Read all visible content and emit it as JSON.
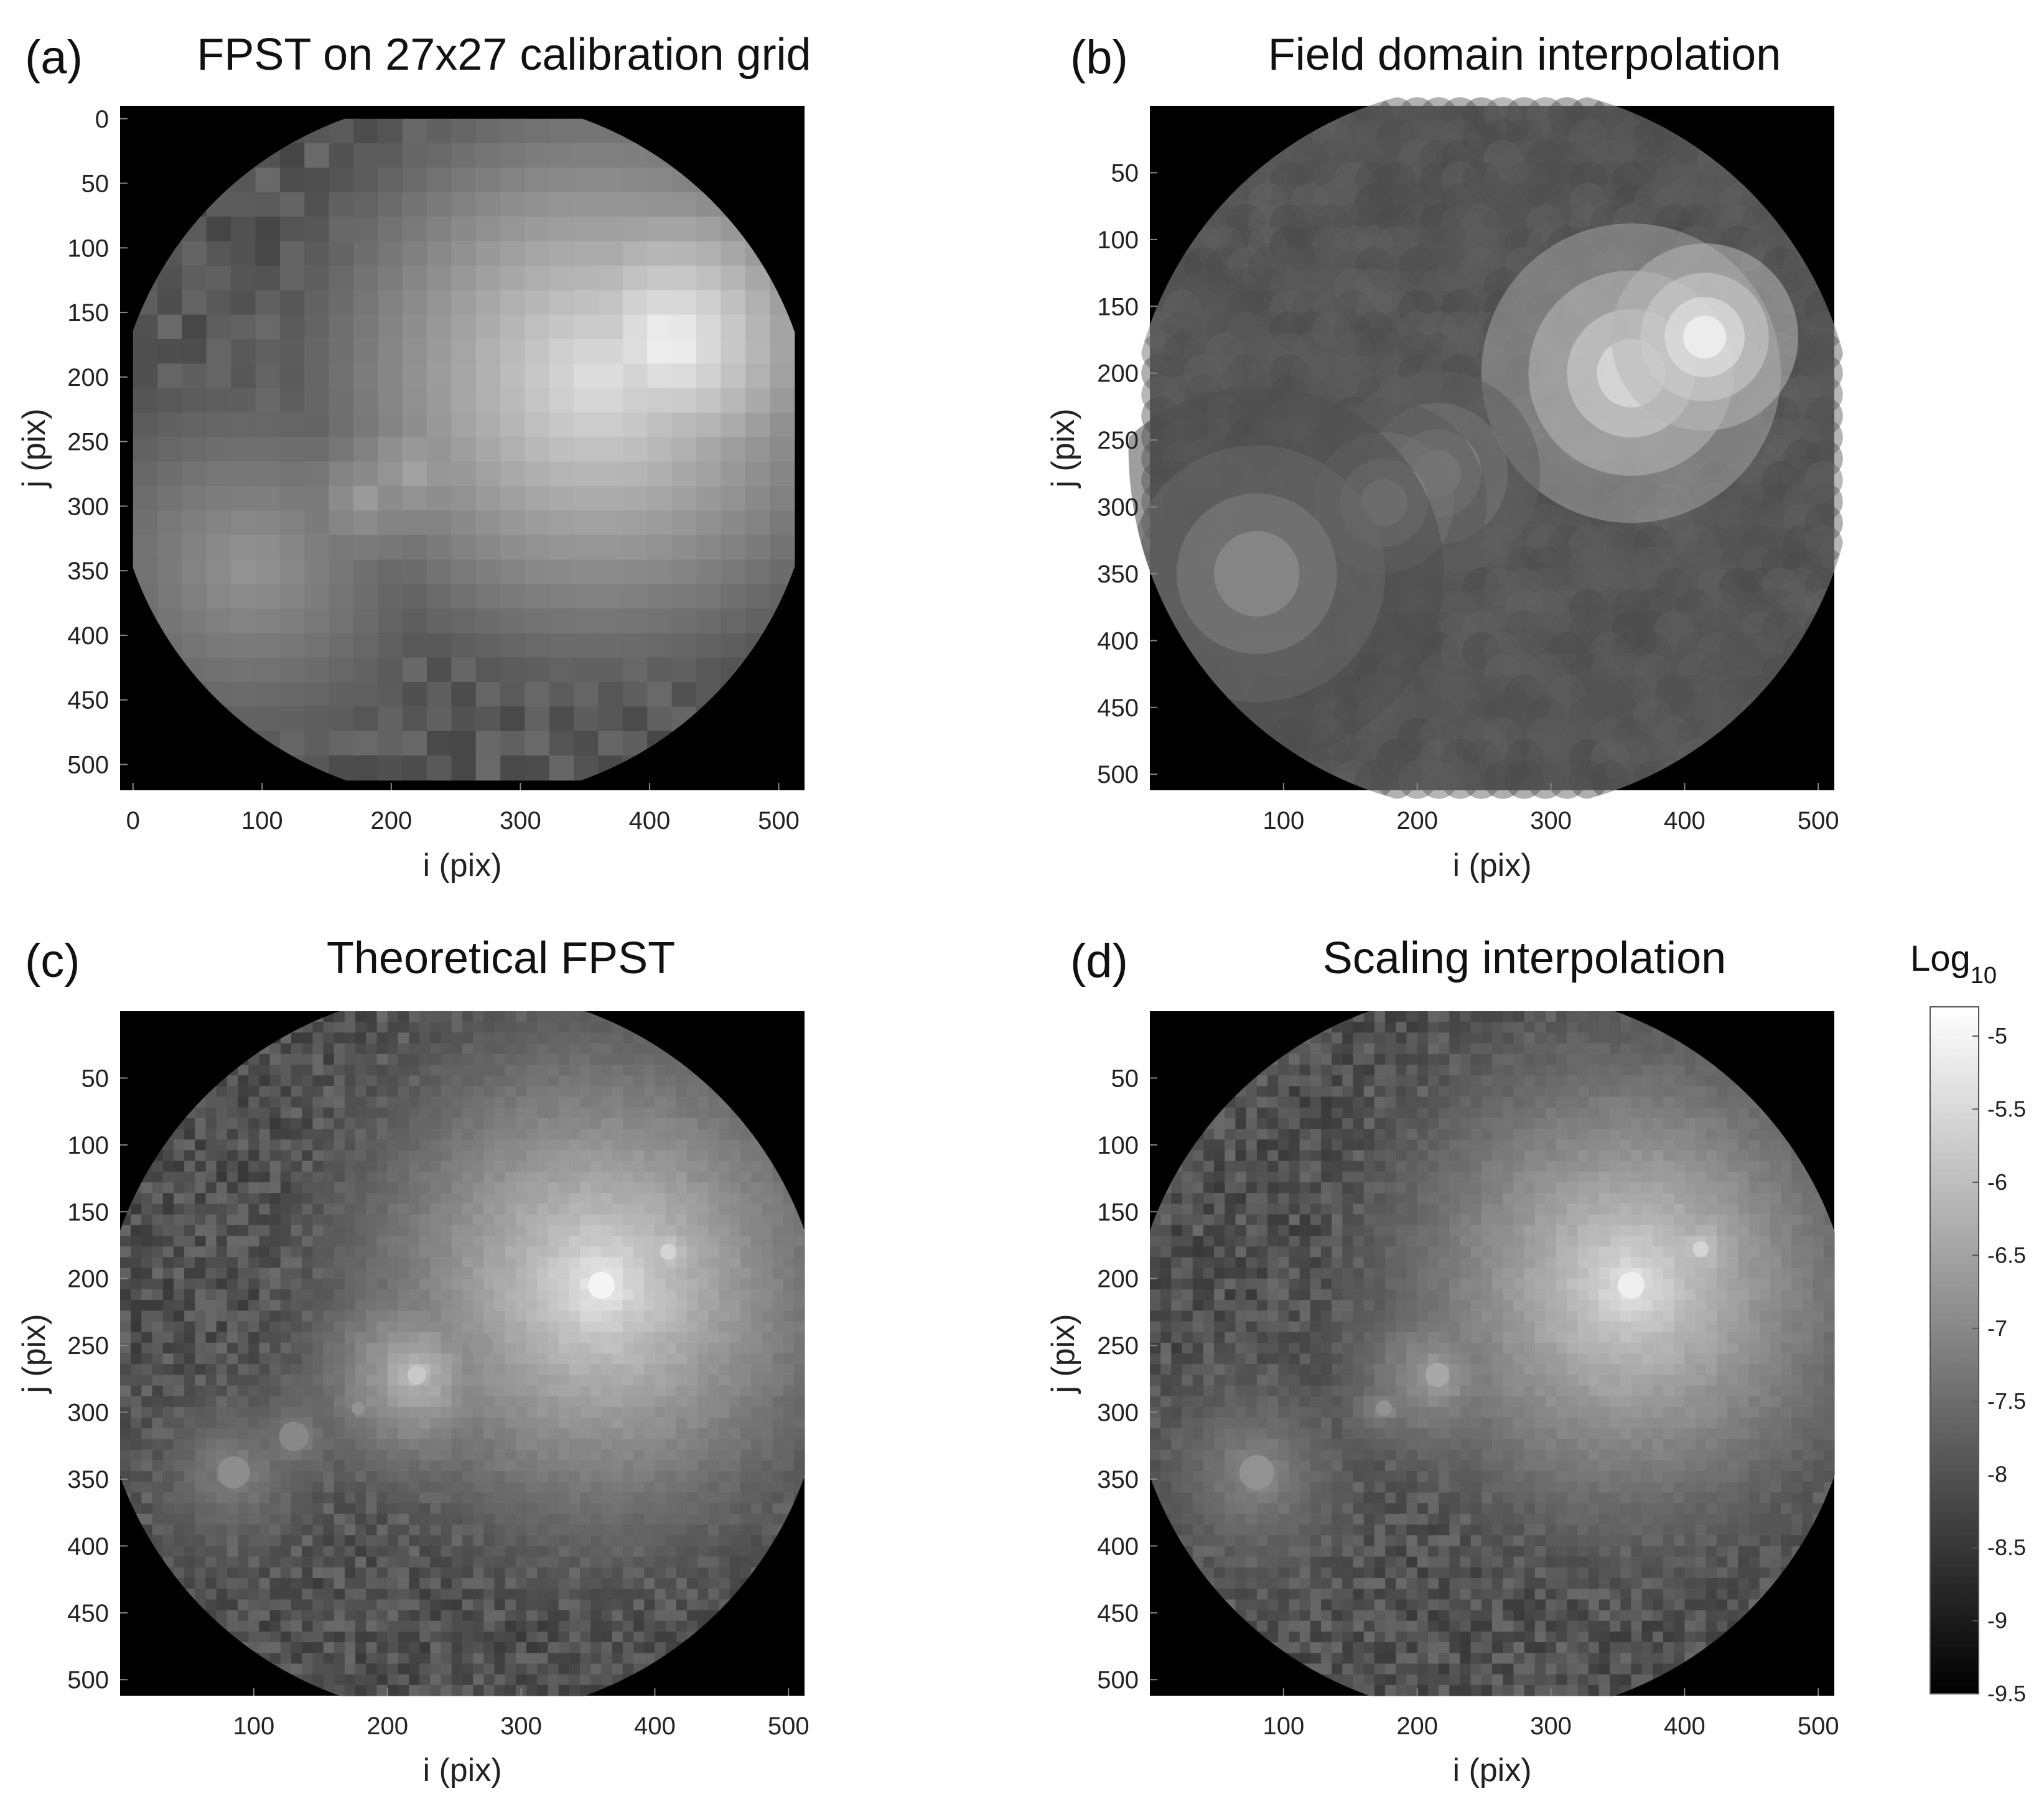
{
  "figure": {
    "colorbar": {
      "title": "Log",
      "subscript": "10",
      "range": [
        -9.5,
        -4.8
      ],
      "ticks": [
        -5,
        -5.5,
        -6,
        -6.5,
        -7,
        -7.5,
        -8,
        -8.5,
        -9,
        -9.5
      ],
      "tick_labels": [
        "-5",
        "-5.5",
        "-6",
        "-6.5",
        "-7",
        "-7.5",
        "-8",
        "-8.5",
        "-9",
        "-9.5"
      ],
      "colormap": "gray",
      "colors": {
        "low": "#000000",
        "high": "#ffffff"
      }
    }
  },
  "chart_data": [
    {
      "type": "heatmap",
      "panel": "(a)",
      "title": "FPST on 27x27 calibration grid",
      "xlabel": "i (pix)",
      "ylabel": "j (pix)",
      "xlim": [
        -10,
        520
      ],
      "ylim": [
        520,
        -10
      ],
      "x_ticks": [
        0,
        100,
        200,
        300,
        400,
        500
      ],
      "y_ticks": [
        0,
        50,
        100,
        150,
        200,
        250,
        300,
        350,
        400,
        450,
        500
      ],
      "x_tick_labels": [
        "0",
        "100",
        "200",
        "300",
        "400",
        "500"
      ],
      "y_tick_labels": [
        "0",
        "50",
        "100",
        "150",
        "200",
        "250",
        "300",
        "350",
        "400",
        "450",
        "500"
      ],
      "grid_size": 27,
      "style": "blocky",
      "background_level": -7.9,
      "features": [
        {
          "x": 360,
          "y": 200,
          "level": -5.2,
          "size": 30
        },
        {
          "x": 415,
          "y": 173,
          "level": -4.8,
          "size": 18
        },
        {
          "x": 220,
          "y": 272,
          "level": -6.3,
          "size": 20
        },
        {
          "x": 180,
          "y": 295,
          "level": -6.5,
          "size": 20
        },
        {
          "x": 90,
          "y": 345,
          "level": -6.6,
          "size": 40
        }
      ]
    },
    {
      "type": "heatmap",
      "panel": "(b)",
      "title": "Field domain interpolation",
      "xlabel": "i (pix)",
      "ylabel": "j (pix)",
      "xlim": [
        0,
        512
      ],
      "ylim": [
        512,
        0
      ],
      "x_ticks": [
        100,
        200,
        300,
        400,
        500
      ],
      "y_ticks": [
        50,
        100,
        150,
        200,
        250,
        300,
        350,
        400,
        450,
        500
      ],
      "x_tick_labels": [
        "100",
        "200",
        "300",
        "400",
        "500"
      ],
      "y_tick_labels": [
        "50",
        "100",
        "150",
        "200",
        "250",
        "300",
        "350",
        "400",
        "450",
        "500"
      ],
      "style": "smooth",
      "background_level": -7.9,
      "features": [
        {
          "x": 360,
          "y": 200,
          "level": -5.2,
          "size": 32
        },
        {
          "x": 415,
          "y": 173,
          "level": -4.8,
          "size": 20
        },
        {
          "x": 215,
          "y": 275,
          "level": -6.4,
          "size": 22
        },
        {
          "x": 175,
          "y": 297,
          "level": -6.5,
          "size": 22
        },
        {
          "x": 80,
          "y": 350,
          "level": -6.7,
          "size": 40
        }
      ]
    },
    {
      "type": "heatmap",
      "panel": "(c)",
      "title": "Theoretical FPST",
      "xlabel": "i (pix)",
      "ylabel": "j (pix)",
      "xlim": [
        0,
        512
      ],
      "ylim": [
        512,
        0
      ],
      "x_ticks": [
        100,
        200,
        300,
        400,
        500
      ],
      "y_ticks": [
        50,
        100,
        150,
        200,
        250,
        300,
        350,
        400,
        450,
        500
      ],
      "x_tick_labels": [
        "100",
        "200",
        "300",
        "400",
        "500"
      ],
      "y_tick_labels": [
        "50",
        "100",
        "150",
        "200",
        "250",
        "300",
        "350",
        "400",
        "450",
        "500"
      ],
      "style": "noisy",
      "background_level": -8.0,
      "features": [
        {
          "x": 360,
          "y": 205,
          "level": -5.0,
          "size": 20
        },
        {
          "x": 410,
          "y": 180,
          "level": -5.6,
          "size": 12
        },
        {
          "x": 222,
          "y": 272,
          "level": -5.8,
          "size": 14
        },
        {
          "x": 270,
          "y": 250,
          "level": -6.8,
          "size": 18
        },
        {
          "x": 178,
          "y": 297,
          "level": -6.8,
          "size": 10
        },
        {
          "x": 130,
          "y": 318,
          "level": -7.0,
          "size": 22
        },
        {
          "x": 85,
          "y": 345,
          "level": -6.9,
          "size": 24
        }
      ]
    },
    {
      "type": "heatmap",
      "panel": "(d)",
      "title": "Scaling interpolation",
      "xlabel": "i (pix)",
      "ylabel": "j (pix)",
      "xlim": [
        0,
        512
      ],
      "ylim": [
        512,
        0
      ],
      "x_ticks": [
        100,
        200,
        300,
        400,
        500
      ],
      "y_ticks": [
        50,
        100,
        150,
        200,
        250,
        300,
        350,
        400,
        450,
        500
      ],
      "x_tick_labels": [
        "100",
        "200",
        "300",
        "400",
        "500"
      ],
      "y_tick_labels": [
        "50",
        "100",
        "150",
        "200",
        "250",
        "300",
        "350",
        "400",
        "450",
        "500"
      ],
      "style": "noisy-blocky",
      "background_level": -8.0,
      "features": [
        {
          "x": 360,
          "y": 205,
          "level": -5.1,
          "size": 20
        },
        {
          "x": 412,
          "y": 178,
          "level": -5.6,
          "size": 12
        },
        {
          "x": 215,
          "y": 272,
          "level": -6.4,
          "size": 18
        },
        {
          "x": 175,
          "y": 297,
          "level": -6.8,
          "size": 12
        },
        {
          "x": 80,
          "y": 345,
          "level": -6.8,
          "size": 26
        }
      ]
    }
  ]
}
